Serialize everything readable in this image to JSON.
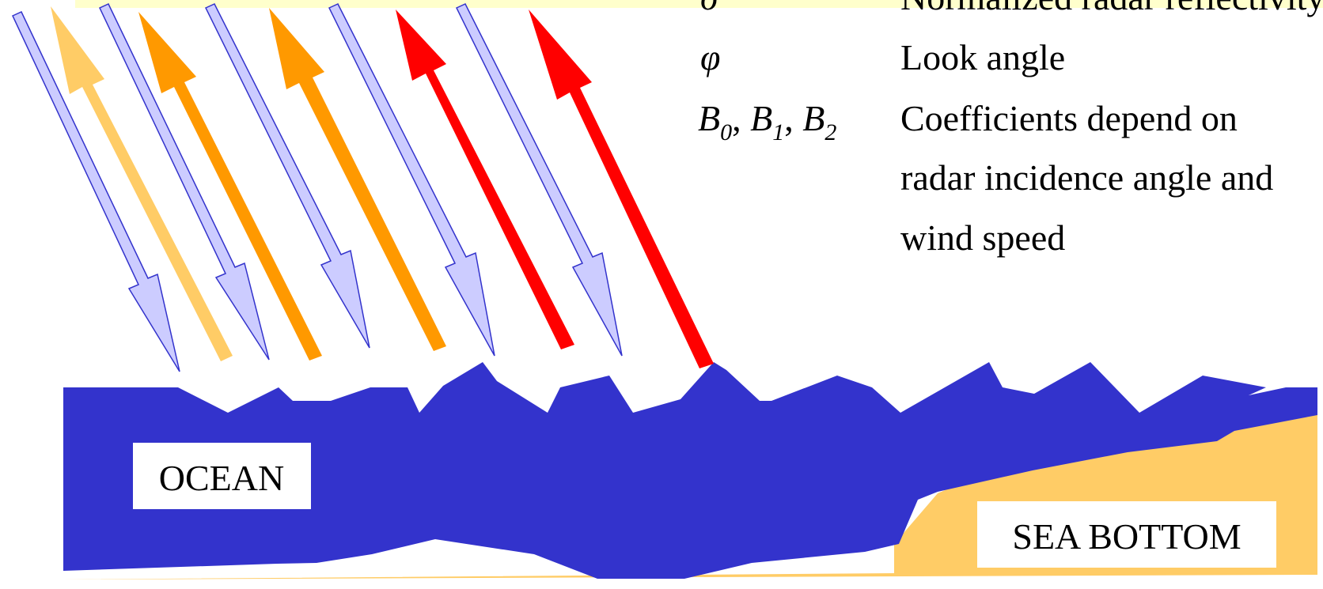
{
  "legend": {
    "rows": [
      {
        "symbol": "σ",
        "description": "Normalized radar reflectivity"
      },
      {
        "symbol": "φ",
        "description": "Look angle"
      },
      {
        "symbol_parts": [
          "B",
          "0",
          ", ",
          "B",
          "1",
          ", ",
          "B",
          "2"
        ],
        "description": "Coefficients depend on"
      }
    ],
    "continuation_lines": [
      "radar incidence angle and",
      "wind speed"
    ]
  },
  "labels": {
    "ocean": "OCEAN",
    "sea_bottom": "SEA BOTTOM"
  },
  "colors": {
    "ocean": "#3333CC",
    "sea_bottom": "#FFCC66",
    "incident_arrow_fill": "#CCCCFF",
    "incident_arrow_stroke": "#3333CC",
    "reflected_weak": "#FFCC66",
    "reflected_medium": "#FF9900",
    "reflected_strong": "#FF0000",
    "header_band": "#FFFFCC"
  },
  "arrows": {
    "incident": [
      "incident",
      "incident",
      "incident",
      "incident",
      "incident"
    ],
    "reflected": [
      "weak",
      "medium",
      "medium",
      "strong",
      "strong"
    ]
  }
}
